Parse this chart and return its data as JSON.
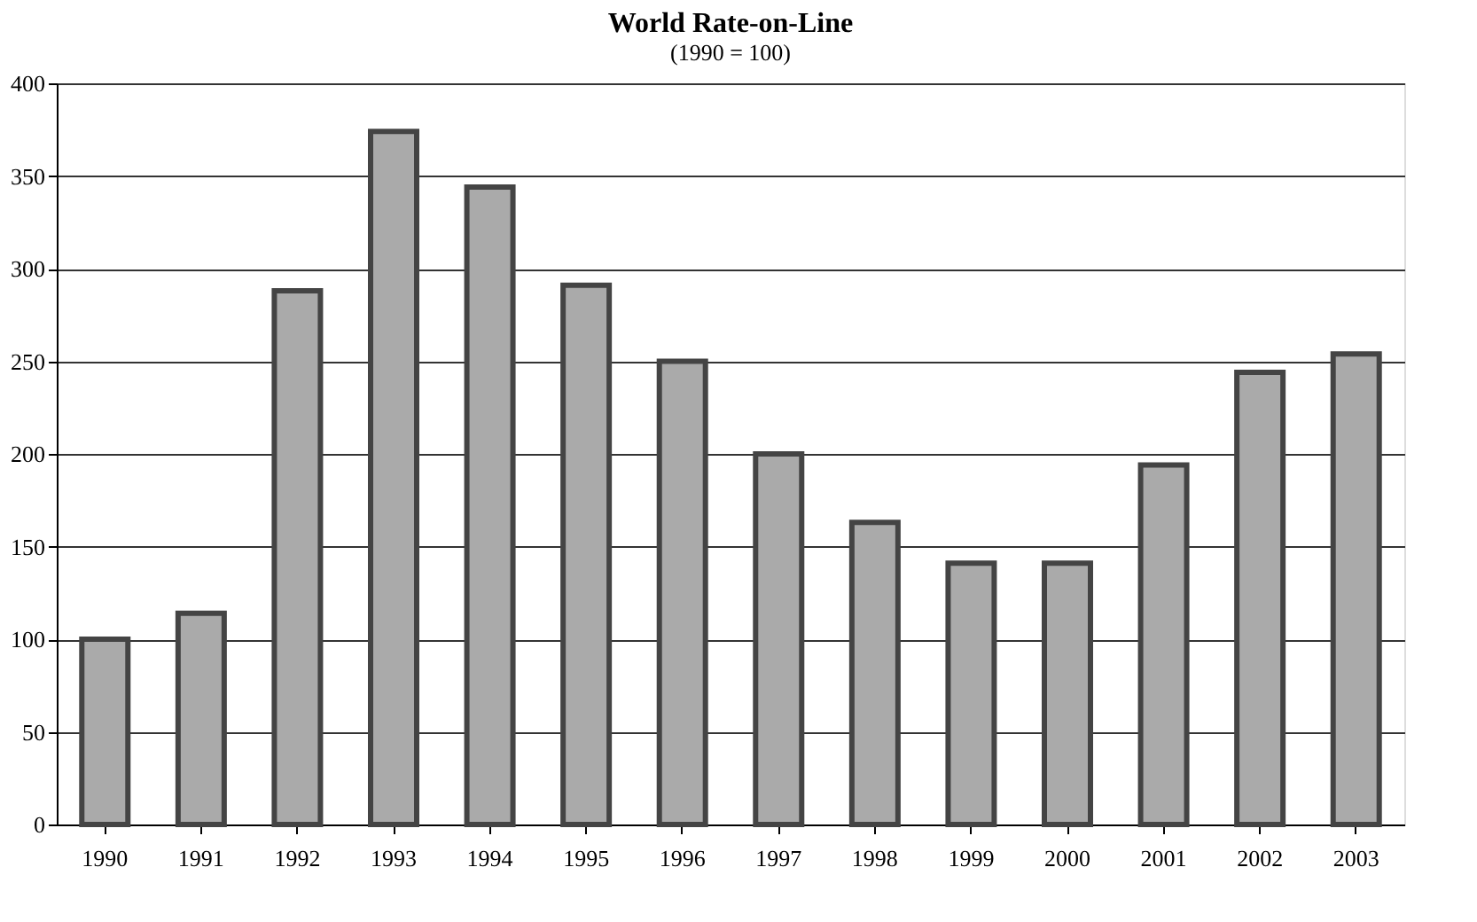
{
  "chart_data": {
    "type": "bar",
    "title": "World Rate-on-Line",
    "subtitle": "(1990 = 100)",
    "categories": [
      "1990",
      "1991",
      "1992",
      "1993",
      "1994",
      "1995",
      "1996",
      "1997",
      "1998",
      "1999",
      "2000",
      "2001",
      "2002",
      "2003"
    ],
    "values": [
      100,
      114,
      288,
      374,
      344,
      291,
      250,
      200,
      163,
      141,
      141,
      194,
      244,
      254
    ],
    "color": "#aaaaaa",
    "ylim": [
      0,
      400
    ],
    "yticks": [
      0,
      50,
      100,
      150,
      200,
      250,
      300,
      350,
      400
    ],
    "grid": "y"
  }
}
